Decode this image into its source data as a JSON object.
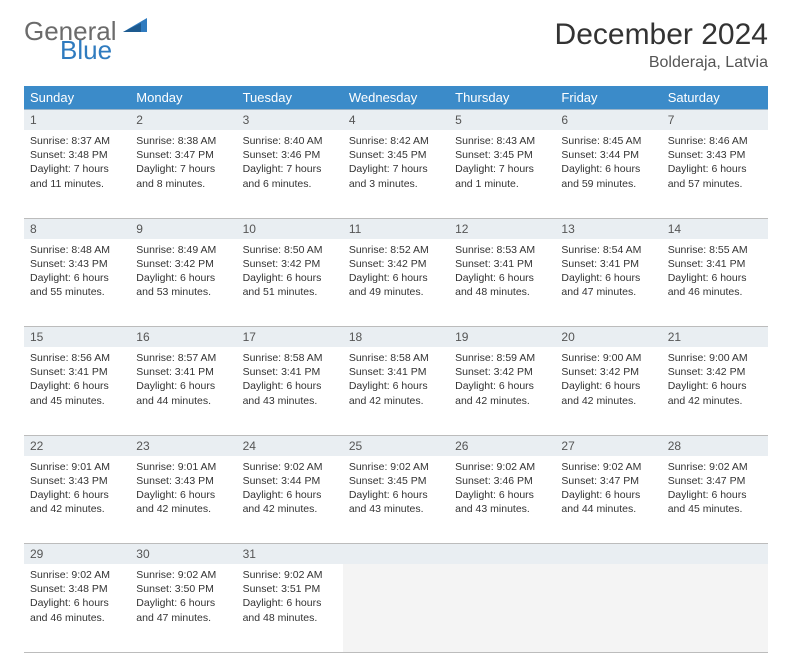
{
  "brand": {
    "part1": "General",
    "part2": "Blue"
  },
  "title": "December 2024",
  "location": "Bolderaja, Latvia",
  "weekday_headers": [
    "Sunday",
    "Monday",
    "Tuesday",
    "Wednesday",
    "Thursday",
    "Friday",
    "Saturday"
  ],
  "colors": {
    "header_bg": "#3b8bc9",
    "header_text": "#ffffff",
    "daynum_bg": "#e9eef2",
    "accent": "#2f7bbf",
    "gray_text": "#6b6b6b",
    "divider": "#bcbcbc"
  },
  "weeks": [
    [
      {
        "n": "1",
        "sunrise": "Sunrise: 8:37 AM",
        "sunset": "Sunset: 3:48 PM",
        "daylight": "Daylight: 7 hours and 11 minutes."
      },
      {
        "n": "2",
        "sunrise": "Sunrise: 8:38 AM",
        "sunset": "Sunset: 3:47 PM",
        "daylight": "Daylight: 7 hours and 8 minutes."
      },
      {
        "n": "3",
        "sunrise": "Sunrise: 8:40 AM",
        "sunset": "Sunset: 3:46 PM",
        "daylight": "Daylight: 7 hours and 6 minutes."
      },
      {
        "n": "4",
        "sunrise": "Sunrise: 8:42 AM",
        "sunset": "Sunset: 3:45 PM",
        "daylight": "Daylight: 7 hours and 3 minutes."
      },
      {
        "n": "5",
        "sunrise": "Sunrise: 8:43 AM",
        "sunset": "Sunset: 3:45 PM",
        "daylight": "Daylight: 7 hours and 1 minute."
      },
      {
        "n": "6",
        "sunrise": "Sunrise: 8:45 AM",
        "sunset": "Sunset: 3:44 PM",
        "daylight": "Daylight: 6 hours and 59 minutes."
      },
      {
        "n": "7",
        "sunrise": "Sunrise: 8:46 AM",
        "sunset": "Sunset: 3:43 PM",
        "daylight": "Daylight: 6 hours and 57 minutes."
      }
    ],
    [
      {
        "n": "8",
        "sunrise": "Sunrise: 8:48 AM",
        "sunset": "Sunset: 3:43 PM",
        "daylight": "Daylight: 6 hours and 55 minutes."
      },
      {
        "n": "9",
        "sunrise": "Sunrise: 8:49 AM",
        "sunset": "Sunset: 3:42 PM",
        "daylight": "Daylight: 6 hours and 53 minutes."
      },
      {
        "n": "10",
        "sunrise": "Sunrise: 8:50 AM",
        "sunset": "Sunset: 3:42 PM",
        "daylight": "Daylight: 6 hours and 51 minutes."
      },
      {
        "n": "11",
        "sunrise": "Sunrise: 8:52 AM",
        "sunset": "Sunset: 3:42 PM",
        "daylight": "Daylight: 6 hours and 49 minutes."
      },
      {
        "n": "12",
        "sunrise": "Sunrise: 8:53 AM",
        "sunset": "Sunset: 3:41 PM",
        "daylight": "Daylight: 6 hours and 48 minutes."
      },
      {
        "n": "13",
        "sunrise": "Sunrise: 8:54 AM",
        "sunset": "Sunset: 3:41 PM",
        "daylight": "Daylight: 6 hours and 47 minutes."
      },
      {
        "n": "14",
        "sunrise": "Sunrise: 8:55 AM",
        "sunset": "Sunset: 3:41 PM",
        "daylight": "Daylight: 6 hours and 46 minutes."
      }
    ],
    [
      {
        "n": "15",
        "sunrise": "Sunrise: 8:56 AM",
        "sunset": "Sunset: 3:41 PM",
        "daylight": "Daylight: 6 hours and 45 minutes."
      },
      {
        "n": "16",
        "sunrise": "Sunrise: 8:57 AM",
        "sunset": "Sunset: 3:41 PM",
        "daylight": "Daylight: 6 hours and 44 minutes."
      },
      {
        "n": "17",
        "sunrise": "Sunrise: 8:58 AM",
        "sunset": "Sunset: 3:41 PM",
        "daylight": "Daylight: 6 hours and 43 minutes."
      },
      {
        "n": "18",
        "sunrise": "Sunrise: 8:58 AM",
        "sunset": "Sunset: 3:41 PM",
        "daylight": "Daylight: 6 hours and 42 minutes."
      },
      {
        "n": "19",
        "sunrise": "Sunrise: 8:59 AM",
        "sunset": "Sunset: 3:42 PM",
        "daylight": "Daylight: 6 hours and 42 minutes."
      },
      {
        "n": "20",
        "sunrise": "Sunrise: 9:00 AM",
        "sunset": "Sunset: 3:42 PM",
        "daylight": "Daylight: 6 hours and 42 minutes."
      },
      {
        "n": "21",
        "sunrise": "Sunrise: 9:00 AM",
        "sunset": "Sunset: 3:42 PM",
        "daylight": "Daylight: 6 hours and 42 minutes."
      }
    ],
    [
      {
        "n": "22",
        "sunrise": "Sunrise: 9:01 AM",
        "sunset": "Sunset: 3:43 PM",
        "daylight": "Daylight: 6 hours and 42 minutes."
      },
      {
        "n": "23",
        "sunrise": "Sunrise: 9:01 AM",
        "sunset": "Sunset: 3:43 PM",
        "daylight": "Daylight: 6 hours and 42 minutes."
      },
      {
        "n": "24",
        "sunrise": "Sunrise: 9:02 AM",
        "sunset": "Sunset: 3:44 PM",
        "daylight": "Daylight: 6 hours and 42 minutes."
      },
      {
        "n": "25",
        "sunrise": "Sunrise: 9:02 AM",
        "sunset": "Sunset: 3:45 PM",
        "daylight": "Daylight: 6 hours and 43 minutes."
      },
      {
        "n": "26",
        "sunrise": "Sunrise: 9:02 AM",
        "sunset": "Sunset: 3:46 PM",
        "daylight": "Daylight: 6 hours and 43 minutes."
      },
      {
        "n": "27",
        "sunrise": "Sunrise: 9:02 AM",
        "sunset": "Sunset: 3:47 PM",
        "daylight": "Daylight: 6 hours and 44 minutes."
      },
      {
        "n": "28",
        "sunrise": "Sunrise: 9:02 AM",
        "sunset": "Sunset: 3:47 PM",
        "daylight": "Daylight: 6 hours and 45 minutes."
      }
    ],
    [
      {
        "n": "29",
        "sunrise": "Sunrise: 9:02 AM",
        "sunset": "Sunset: 3:48 PM",
        "daylight": "Daylight: 6 hours and 46 minutes."
      },
      {
        "n": "30",
        "sunrise": "Sunrise: 9:02 AM",
        "sunset": "Sunset: 3:50 PM",
        "daylight": "Daylight: 6 hours and 47 minutes."
      },
      {
        "n": "31",
        "sunrise": "Sunrise: 9:02 AM",
        "sunset": "Sunset: 3:51 PM",
        "daylight": "Daylight: 6 hours and 48 minutes."
      },
      null,
      null,
      null,
      null
    ]
  ]
}
